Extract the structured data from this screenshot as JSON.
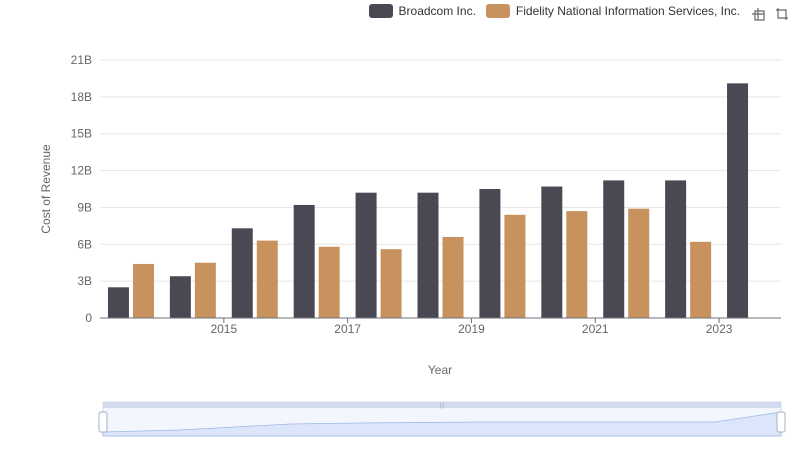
{
  "chart_data": {
    "type": "bar",
    "categories": [
      "2014",
      "2015",
      "2016",
      "2017",
      "2018",
      "2019",
      "2020",
      "2021",
      "2022",
      "2023",
      "2024"
    ],
    "x_tick_labels": [
      "2015",
      "2017",
      "2019",
      "2021",
      "2023"
    ],
    "series": [
      {
        "name": "Broadcom Inc.",
        "color": "#4a4953",
        "values": [
          2.5,
          3.4,
          7.3,
          9.2,
          10.2,
          10.2,
          10.5,
          10.7,
          11.2,
          11.2,
          19.1
        ]
      },
      {
        "name": "Fidelity National Information Services, Inc.",
        "color": "#c8925e",
        "values": [
          4.4,
          4.5,
          6.3,
          5.8,
          5.6,
          6.6,
          8.4,
          8.7,
          8.9,
          6.2,
          null
        ]
      }
    ],
    "xlabel": "Year",
    "ylabel": "Cost of Revenue",
    "ylim": [
      0,
      21
    ],
    "y_ticks": [
      {
        "value": 0,
        "label": "0"
      },
      {
        "value": 3,
        "label": "3B"
      },
      {
        "value": 6,
        "label": "6B"
      },
      {
        "value": 9,
        "label": "9B"
      },
      {
        "value": 12,
        "label": "12B"
      },
      {
        "value": 15,
        "label": "15B"
      },
      {
        "value": 18,
        "label": "18B"
      },
      {
        "value": 21,
        "label": "21B"
      }
    ],
    "grid": true,
    "legend_position": "top-right"
  },
  "toolbox": {
    "zoom_icon": "zoom-icon",
    "restore_icon": "restore-icon"
  },
  "datazoom": {
    "start_percent": 0,
    "end_percent": 100
  }
}
